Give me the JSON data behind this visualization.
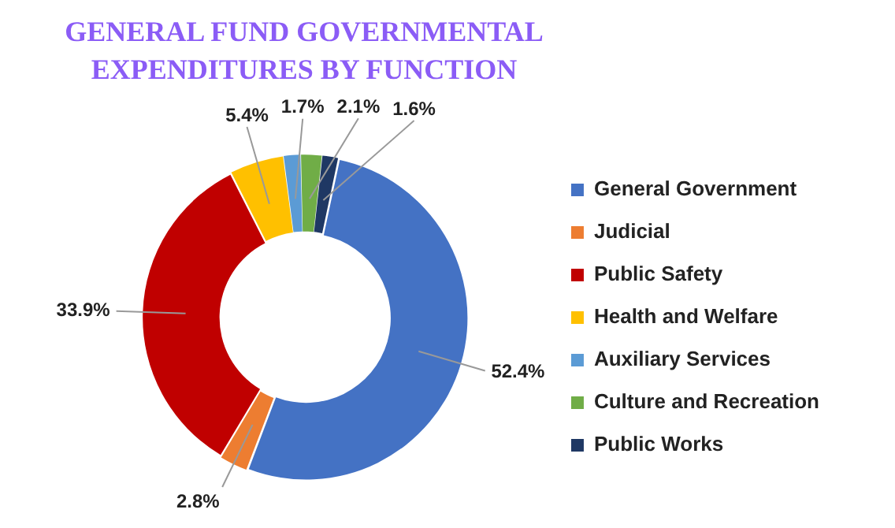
{
  "chart_data": {
    "type": "donut",
    "title": "GENERAL FUND  GOVERNMENTAL EXPENDITURES BY FUNCTION",
    "categories": [
      "General Government",
      "Judicial",
      "Public Safety",
      "Health and Welfare",
      "Auxiliary Services",
      "Culture and Recreation",
      "Public Works"
    ],
    "values": [
      52.4,
      2.8,
      33.9,
      5.4,
      1.7,
      2.1,
      1.6
    ],
    "colors": [
      "#4472c4",
      "#ed7d31",
      "#c00000",
      "#ffc000",
      "#5b9bd5",
      "#70ad47",
      "#1f3864"
    ],
    "value_labels": [
      "52.4%",
      "2.8%",
      "33.9%",
      "5.4%",
      "1.7%",
      "2.1%",
      "1.6%"
    ],
    "legend": "right"
  }
}
